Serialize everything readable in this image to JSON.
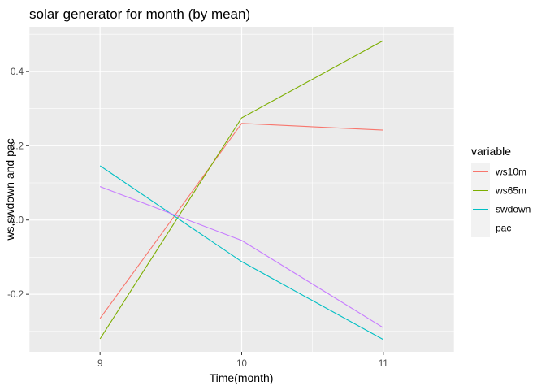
{
  "chart_data": {
    "type": "line",
    "title": "solar generator for month (by mean)",
    "xlabel": "Time(month)",
    "ylabel": "ws,swdown and pac",
    "x": [
      9,
      10,
      11
    ],
    "xlim": [
      8.5,
      11.5
    ],
    "xticks": [
      9,
      10,
      11
    ],
    "ylim": [
      -0.355,
      0.52
    ],
    "yticks": [
      -0.2,
      0.0,
      0.2,
      0.4
    ],
    "ytick_labels": [
      "-0.2",
      "0.0",
      "0.2",
      "0.4"
    ],
    "grid": true,
    "legend": {
      "title": "variable",
      "position": "right"
    },
    "series": [
      {
        "name": "ws10m",
        "color": "#F8766D",
        "values": [
          -0.265,
          0.26,
          0.242
        ]
      },
      {
        "name": "ws65m",
        "color": "#7CAE00",
        "values": [
          -0.32,
          0.275,
          0.483
        ]
      },
      {
        "name": "swdown",
        "color": "#00BFC4",
        "values": [
          0.146,
          -0.112,
          -0.322
        ]
      },
      {
        "name": "pac",
        "color": "#C77CFF",
        "values": [
          0.09,
          -0.055,
          -0.29
        ]
      }
    ]
  }
}
